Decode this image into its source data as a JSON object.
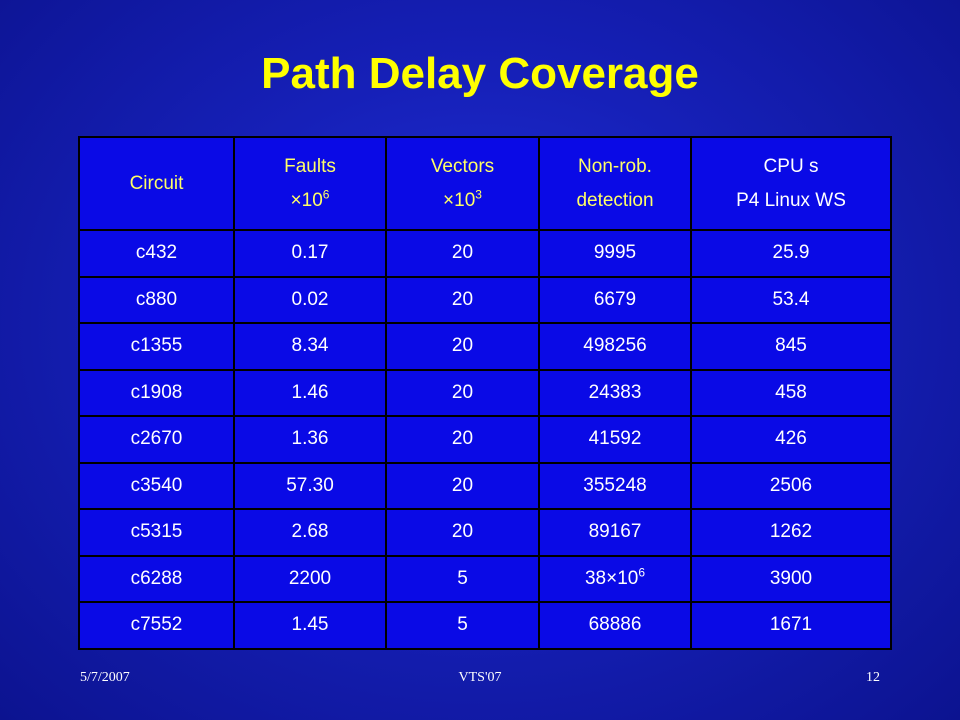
{
  "slide": {
    "title": "Path Delay Coverage"
  },
  "table": {
    "headers": {
      "circuit": "Circuit",
      "faults_line1": "Faults",
      "faults_line2_base": "×10",
      "faults_line2_exp": "6",
      "vectors_line1": "Vectors",
      "vectors_line2_base": "×10",
      "vectors_line2_exp": "3",
      "nonrob_line1": "Non-rob.",
      "nonrob_line2": "detection",
      "cpu_line1": "CPU s",
      "cpu_line2": "P4 Linux WS"
    },
    "rows": [
      {
        "circuit": "c432",
        "faults": "0.17",
        "vectors": "20",
        "nonrob": "9995",
        "cpu": "25.9"
      },
      {
        "circuit": "c880",
        "faults": "0.02",
        "vectors": "20",
        "nonrob": "6679",
        "cpu": "53.4"
      },
      {
        "circuit": "c1355",
        "faults": "8.34",
        "vectors": "20",
        "nonrob": "498256",
        "cpu": "845"
      },
      {
        "circuit": "c1908",
        "faults": "1.46",
        "vectors": "20",
        "nonrob": "24383",
        "cpu": "458"
      },
      {
        "circuit": "c2670",
        "faults": "1.36",
        "vectors": "20",
        "nonrob": "41592",
        "cpu": "426"
      },
      {
        "circuit": "c3540",
        "faults": "57.30",
        "vectors": "20",
        "nonrob": "355248",
        "cpu": "2506"
      },
      {
        "circuit": "c5315",
        "faults": "2.68",
        "vectors": "20",
        "nonrob": "89167",
        "cpu": "1262"
      },
      {
        "circuit": "c6288",
        "faults": "2200",
        "vectors": "5",
        "nonrob_base": "38×10",
        "nonrob_exp": "6",
        "cpu": "3900"
      },
      {
        "circuit": "c7552",
        "faults": "1.45",
        "vectors": "5",
        "nonrob": "68886",
        "cpu": "1671"
      }
    ]
  },
  "footer": {
    "date": "5/7/2007",
    "conference": "VTS'07",
    "page": "12"
  },
  "colors": {
    "background": "#1620b8",
    "title": "#ffff00",
    "table_fill": "#0a0ae6",
    "header_text": "#ffff66",
    "cell_text": "#ffffff"
  }
}
